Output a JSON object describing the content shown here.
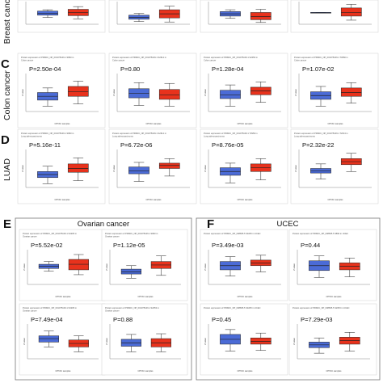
{
  "colors": {
    "normal": "#4b6bd6",
    "tumor": "#e8321c",
    "frame": "#9a9a9a",
    "line": "#222222"
  },
  "chart_data": [
    {
      "type": "box",
      "row": "breast",
      "row_label": "Breast cancer",
      "panel_letter": "",
      "charts": [
        {
          "p": "",
          "title": "",
          "subtitle": "",
          "y_label": "",
          "x_label": "",
          "boxes": [
            {
              "q1": 0.4,
              "med": 0.48,
              "q3": 0.58,
              "lo": 0.3,
              "hi": 0.64
            },
            {
              "q1": 0.38,
              "med": 0.52,
              "q3": 0.66,
              "lo": 0.24,
              "hi": 0.78
            }
          ]
        },
        {
          "p": "",
          "title": "",
          "subtitle": "",
          "y_label": "",
          "x_label": "",
          "boxes": [
            {
              "q1": 0.22,
              "med": 0.3,
              "q3": 0.4,
              "lo": 0.12,
              "hi": 0.48
            },
            {
              "q1": 0.28,
              "med": 0.46,
              "q3": 0.64,
              "lo": 0.1,
              "hi": 0.8
            }
          ]
        },
        {
          "p": "",
          "title": "",
          "subtitle": "",
          "y_label": "",
          "x_label": "",
          "boxes": [
            {
              "q1": 0.36,
              "med": 0.46,
              "q3": 0.56,
              "lo": 0.26,
              "hi": 0.64
            },
            {
              "q1": 0.2,
              "med": 0.34,
              "q3": 0.52,
              "lo": 0.08,
              "hi": 0.66
            }
          ]
        },
        {
          "p": "",
          "title": "",
          "subtitle": "",
          "y_label": "",
          "x_label": "",
          "boxes": [
            {
              "q1": 0.52,
              "med": 0.52,
              "q3": 0.52,
              "lo": 0.52,
              "hi": 0.52
            },
            {
              "q1": 0.36,
              "med": 0.52,
              "q3": 0.72,
              "lo": 0.18,
              "hi": 0.88
            }
          ]
        }
      ]
    },
    {
      "type": "box",
      "row": "colon",
      "row_label": "Colon cancer",
      "panel_letter": "C",
      "charts": [
        {
          "p": "P=2.50e-04",
          "title": "Protein expression of PRKDC_NP_001075109.1 S893 in",
          "subtitle": "Colon cancer",
          "y_label": "Z-value",
          "x_label": "CPTAC samples",
          "boxes": [
            {
              "q1": 0.3,
              "med": 0.4,
              "q3": 0.5,
              "lo": 0.14,
              "hi": 0.62
            },
            {
              "q1": 0.4,
              "med": 0.52,
              "q3": 0.66,
              "lo": 0.2,
              "hi": 0.8
            }
          ]
        },
        {
          "p": "P=0.80",
          "title": "Protein expression of PRKDC_NP_001075109.1 S2612 in",
          "subtitle": "Colon cancer",
          "y_label": "Z-value",
          "x_label": "CPTAC samples",
          "boxes": [
            {
              "q1": 0.36,
              "med": 0.48,
              "q3": 0.6,
              "lo": 0.16,
              "hi": 0.76
            },
            {
              "q1": 0.32,
              "med": 0.44,
              "q3": 0.58,
              "lo": 0.14,
              "hi": 0.74
            }
          ]
        },
        {
          "p": "P=1.28e-04",
          "title": "Protein expression of PRKDC_NP_001075109.1 S2053 in",
          "subtitle": "Colon cancer",
          "y_label": "Z-value",
          "x_label": "CPTAC samples",
          "boxes": [
            {
              "q1": 0.34,
              "med": 0.44,
              "q3": 0.56,
              "lo": 0.14,
              "hi": 0.7
            },
            {
              "q1": 0.44,
              "med": 0.54,
              "q3": 0.64,
              "lo": 0.24,
              "hi": 0.78
            }
          ]
        },
        {
          "p": "P=1.07e-02",
          "title": "Protein expression of PRKDC_NP_001075109.1 T3950 in",
          "subtitle": "Colon cancer",
          "y_label": "Z-value",
          "x_label": "CPTAC samples",
          "boxes": [
            {
              "q1": 0.32,
              "med": 0.42,
              "q3": 0.52,
              "lo": 0.14,
              "hi": 0.66
            },
            {
              "q1": 0.4,
              "med": 0.5,
              "q3": 0.62,
              "lo": 0.22,
              "hi": 0.76
            }
          ]
        }
      ]
    },
    {
      "type": "box",
      "row": "luad",
      "row_label": "LUAD",
      "panel_letter": "D",
      "charts": [
        {
          "p": "P=5.16e-11",
          "title": "Protein expression of PRKDC_NP_001075109.1 S893 in",
          "subtitle": "Lung adenocarcinoma",
          "y_label": "Z-value",
          "x_label": "CPTAC samples",
          "boxes": [
            {
              "q1": 0.26,
              "med": 0.34,
              "q3": 0.42,
              "lo": 0.1,
              "hi": 0.56
            },
            {
              "q1": 0.4,
              "med": 0.5,
              "q3": 0.62,
              "lo": 0.18,
              "hi": 0.78
            }
          ]
        },
        {
          "p": "P=6.72e-06",
          "title": "Protein expression of PRKDC_NP_001075109.1 S2612 in",
          "subtitle": "Lung adenocarcinoma",
          "y_label": "Z-value",
          "x_label": "CPTAC samples",
          "boxes": [
            {
              "q1": 0.36,
              "med": 0.44,
              "q3": 0.54,
              "lo": 0.16,
              "hi": 0.66
            },
            {
              "q1": 0.5,
              "med": 0.58,
              "q3": 0.64,
              "lo": 0.3,
              "hi": 0.76
            }
          ]
        },
        {
          "p": "P=8.76e-05",
          "title": "Protein expression of PRKDC_NP_001075109.1 T3950 in",
          "subtitle": "Lung adenocarcinoma",
          "y_label": "Z-value",
          "x_label": "CPTAC samples",
          "boxes": [
            {
              "q1": 0.32,
              "med": 0.42,
              "q3": 0.52,
              "lo": 0.12,
              "hi": 0.64
            },
            {
              "q1": 0.42,
              "med": 0.52,
              "q3": 0.62,
              "lo": 0.2,
              "hi": 0.76
            }
          ]
        },
        {
          "p": "P=2.32e-22",
          "title": "Protein expression of PRKDC_NP_001075109.1 T2613 in",
          "subtitle": "Lung adenocarcinoma",
          "y_label": "Z-value",
          "x_label": "CPTAC samples",
          "boxes": [
            {
              "q1": 0.38,
              "med": 0.44,
              "q3": 0.5,
              "lo": 0.22,
              "hi": 0.62
            },
            {
              "q1": 0.6,
              "med": 0.68,
              "q3": 0.76,
              "lo": 0.42,
              "hi": 0.9
            }
          ]
        }
      ]
    },
    {
      "type": "box",
      "row": "ovarian",
      "section_title": "Ovarian cancer",
      "panel_letter": "E",
      "charts": [
        {
          "p": "P=5.52e-02",
          "title": "Protein expression of PRKDC_NP_001075109.1 S3205 in",
          "subtitle": "Ovarian cancer",
          "y_label": "Z-value",
          "x_label": "CPTAC samples",
          "boxes": [
            {
              "q1": 0.46,
              "med": 0.52,
              "q3": 0.58,
              "lo": 0.38,
              "hi": 0.66
            },
            {
              "q1": 0.42,
              "med": 0.58,
              "q3": 0.72,
              "lo": 0.28,
              "hi": 0.86
            }
          ]
        },
        {
          "p": "P=1.12e-05",
          "title": "Protein expression of PRKDC_NP_001075109.1 S893 in",
          "subtitle": "Ovarian cancer",
          "y_label": "Z-value",
          "x_label": "CPTAC samples",
          "boxes": [
            {
              "q1": 0.3,
              "med": 0.36,
              "q3": 0.44,
              "lo": 0.18,
              "hi": 0.54
            },
            {
              "q1": 0.46,
              "med": 0.56,
              "q3": 0.66,
              "lo": 0.26,
              "hi": 0.82
            }
          ]
        },
        {
          "p": "P=7.49e-04",
          "title": "Protein expression of PRKDC_NP_001075109.1 S3205 in",
          "subtitle": "Ovarian cancer",
          "y_label": "Z-value",
          "x_label": "CPTAC samples",
          "boxes": [
            {
              "q1": 0.48,
              "med": 0.58,
              "q3": 0.66,
              "lo": 0.34,
              "hi": 0.8
            },
            {
              "q1": 0.34,
              "med": 0.44,
              "q3": 0.54,
              "lo": 0.2,
              "hi": 0.66
            }
          ]
        },
        {
          "p": "P=0.88",
          "title": "Protein expression of PRKDC_NP_001075109.1 S2053 in",
          "subtitle": "Ovarian cancer",
          "y_label": "Z-value",
          "x_label": "CPTAC samples",
          "boxes": [
            {
              "q1": 0.36,
              "med": 0.46,
              "q3": 0.56,
              "lo": 0.2,
              "hi": 0.7
            },
            {
              "q1": 0.34,
              "med": 0.46,
              "q3": 0.58,
              "lo": 0.2,
              "hi": 0.72
            }
          ]
        }
      ]
    },
    {
      "type": "box",
      "row": "ucec",
      "section_title": "UCEC",
      "panel_letter": "F",
      "charts": [
        {
          "p": "P=3.49e-03",
          "title": "Protein expression of PRKDC_NP_008835.5 S3205 in UCEC",
          "subtitle": "",
          "y_label": "Z-value",
          "x_label": "CPTAC samples",
          "boxes": [
            {
              "q1": 0.42,
              "med": 0.54,
              "q3": 0.66,
              "lo": 0.24,
              "hi": 0.8
            },
            {
              "q1": 0.54,
              "med": 0.62,
              "q3": 0.7,
              "lo": 0.36,
              "hi": 0.84
            }
          ]
        },
        {
          "p": "P=0.44",
          "title": "Protein expression of PRKDC_NP_008835.5 S893 in UCEC",
          "subtitle": "",
          "y_label": "Z-value",
          "x_label": "CPTAC samples",
          "boxes": [
            {
              "q1": 0.4,
              "med": 0.54,
              "q3": 0.68,
              "lo": 0.2,
              "hi": 0.82
            },
            {
              "q1": 0.42,
              "med": 0.52,
              "q3": 0.62,
              "lo": 0.22,
              "hi": 0.76
            }
          ]
        },
        {
          "p": "P=0.45",
          "title": "Protein expression of PRKDC_NP_008835.5 S3205 in UCEC",
          "subtitle": "",
          "y_label": "Z-value",
          "x_label": "CPTAC samples",
          "boxes": [
            {
              "q1": 0.42,
              "med": 0.56,
              "q3": 0.7,
              "lo": 0.22,
              "hi": 0.84
            },
            {
              "q1": 0.42,
              "med": 0.5,
              "q3": 0.6,
              "lo": 0.24,
              "hi": 0.74
            }
          ]
        },
        {
          "p": "P=7.29e-03",
          "title": "Protein expression of PRKDC_NP_008835.5 S2053 in UCEC",
          "subtitle": "",
          "y_label": "Z-value",
          "x_label": "CPTAC samples",
          "boxes": [
            {
              "q1": 0.32,
              "med": 0.4,
              "q3": 0.48,
              "lo": 0.16,
              "hi": 0.6
            },
            {
              "q1": 0.42,
              "med": 0.52,
              "q3": 0.62,
              "lo": 0.22,
              "hi": 0.76
            }
          ]
        }
      ]
    }
  ]
}
